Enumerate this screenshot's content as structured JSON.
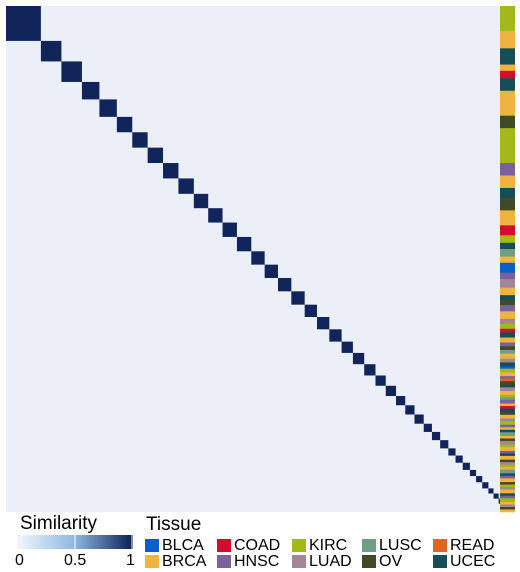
{
  "chart_data": {
    "type": "heatmap",
    "title": "",
    "xlabel": "",
    "ylabel": "",
    "color_scale": {
      "name": "Similarity",
      "min": 0,
      "max": 1,
      "ticks": [
        "0",
        "0.5",
        "1"
      ],
      "low_color": "#f2f7fd",
      "high_color": "#0b1e55"
    },
    "matrix_background_value": 0.03,
    "diagonal_cluster_sizes": [
      34,
      20,
      20,
      17,
      17,
      15,
      15,
      15,
      15,
      15,
      14,
      14,
      14,
      14,
      13,
      13,
      13,
      13,
      12,
      12,
      12,
      11,
      11,
      11,
      10,
      10,
      9,
      9,
      9,
      8,
      8,
      8,
      7,
      7,
      7,
      6,
      6,
      6,
      5,
      5,
      5,
      4,
      4
    ],
    "tissue_legend": {
      "title": "Tissue",
      "items": [
        {
          "label": "BLCA",
          "color": "#0a5ec8"
        },
        {
          "label": "BRCA",
          "color": "#efb43f"
        },
        {
          "label": "COAD",
          "color": "#d20d2d"
        },
        {
          "label": "HNSC",
          "color": "#7a6199"
        },
        {
          "label": "KIRC",
          "color": "#a4b81a"
        },
        {
          "label": "LUAD",
          "color": "#a48597"
        },
        {
          "label": "LUSC",
          "color": "#6e9e83"
        },
        {
          "label": "OV",
          "color": "#404a26"
        },
        {
          "label": "READ",
          "color": "#e3641e"
        },
        {
          "label": "UCEC",
          "color": "#144f57"
        }
      ]
    },
    "tissue_annotation_blocks": [
      [
        "KIRC",
        20
      ],
      [
        "BRCA",
        14
      ],
      [
        "UCEC",
        13
      ],
      [
        "BRCA",
        5
      ],
      [
        "COAD",
        6
      ],
      [
        "UCEC",
        10
      ],
      [
        "BRCA",
        20
      ],
      [
        "OV",
        10
      ],
      [
        "KIRC",
        28
      ],
      [
        "HNSC",
        10
      ],
      [
        "BRCA",
        10
      ],
      [
        "UCEC",
        8
      ],
      [
        "OV",
        10
      ],
      [
        "BRCA",
        12
      ],
      [
        "COAD",
        8
      ],
      [
        "KIRC",
        6
      ],
      [
        "UCEC",
        5
      ],
      [
        "LUSC",
        6
      ],
      [
        "BRCA",
        5
      ],
      [
        "BLCA",
        8
      ],
      [
        "HNSC",
        5
      ],
      [
        "LUAD",
        7
      ],
      [
        "BRCA",
        6
      ],
      [
        "UCEC",
        4
      ],
      [
        "OV",
        4
      ],
      [
        "HNSC",
        5
      ],
      [
        "BRCA",
        6
      ],
      [
        "LUAD",
        4
      ],
      [
        "KIRC",
        4
      ],
      [
        "COAD",
        3
      ],
      [
        "UCEC",
        4
      ],
      [
        "BRCA",
        4
      ],
      [
        "HNSC",
        3
      ],
      [
        "OV",
        3
      ],
      [
        "LUSC",
        3
      ],
      [
        "BRCA",
        4
      ],
      [
        "LUAD",
        3
      ],
      [
        "UCEC",
        3
      ],
      [
        "BLCA",
        2
      ],
      [
        "KIRC",
        3
      ],
      [
        "BRCA",
        3
      ],
      [
        "HNSC",
        2
      ],
      [
        "READ",
        2
      ],
      [
        "OV",
        3
      ],
      [
        "UCEC",
        2
      ],
      [
        "LUAD",
        3
      ],
      [
        "BRCA",
        3
      ],
      [
        "KIRC",
        2
      ],
      [
        "LUSC",
        2
      ],
      [
        "HNSC",
        3
      ],
      [
        "BRCA",
        2
      ],
      [
        "COAD",
        2
      ],
      [
        "UCEC",
        3
      ],
      [
        "OV",
        2
      ],
      [
        "BRCA",
        3
      ],
      [
        "LUAD",
        2
      ],
      [
        "KIRC",
        3
      ],
      [
        "HNSC",
        2
      ],
      [
        "BRCA",
        2
      ],
      [
        "UCEC",
        2
      ],
      [
        "LUSC",
        3
      ],
      [
        "BRCA",
        2
      ],
      [
        "OV",
        2
      ],
      [
        "LUAD",
        3
      ],
      [
        "KIRC",
        2
      ],
      [
        "BRCA",
        3
      ],
      [
        "HNSC",
        2
      ],
      [
        "UCEC",
        2
      ],
      [
        "BRCA",
        3
      ],
      [
        "OV",
        2
      ],
      [
        "LUAD",
        2
      ],
      [
        "KIRC",
        2
      ],
      [
        "BRCA",
        2
      ],
      [
        "LUSC",
        3
      ],
      [
        "UCEC",
        2
      ],
      [
        "HNSC",
        2
      ],
      [
        "BRCA",
        3
      ],
      [
        "OV",
        2
      ],
      [
        "KIRC",
        2
      ],
      [
        "LUAD",
        2
      ],
      [
        "BRCA",
        3
      ],
      [
        "UCEC",
        2
      ],
      [
        "HNSC",
        2
      ],
      [
        "KIRC",
        3
      ],
      [
        "BRCA",
        2
      ],
      [
        "LUAD",
        2
      ],
      [
        "OV",
        2
      ],
      [
        "BRCA",
        2
      ]
    ]
  }
}
